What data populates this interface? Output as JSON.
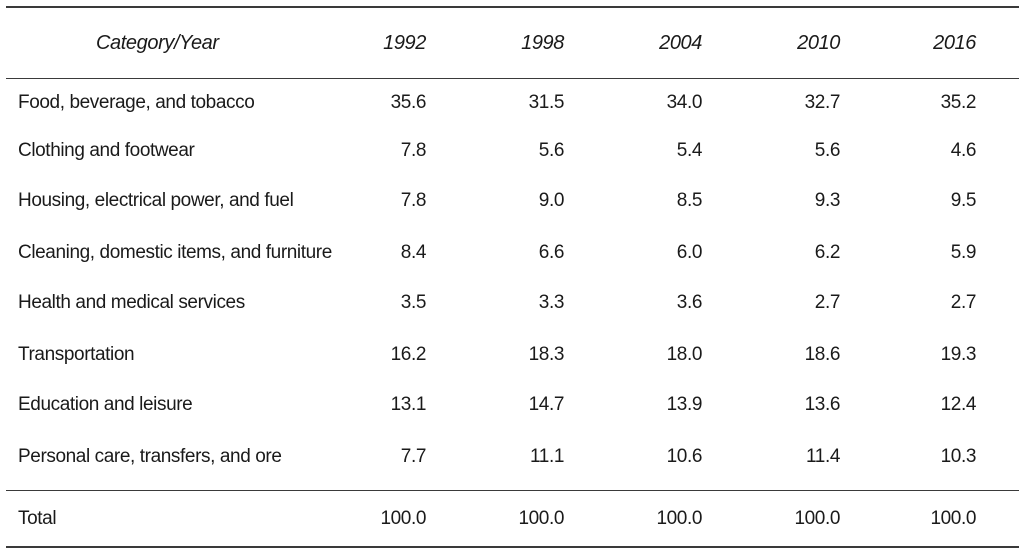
{
  "chart_data": {
    "type": "table",
    "columns": [
      "Category/Year",
      "1992",
      "1998",
      "2004",
      "2010",
      "2016"
    ],
    "rows": [
      {
        "label": "Food, beverage, and tobacco",
        "values": [
          "35.6",
          "31.5",
          "34.0",
          "32.7",
          "35.2"
        ]
      },
      {
        "label": "Clothing and footwear",
        "values": [
          "7.8",
          "5.6",
          "5.4",
          "5.6",
          "4.6"
        ]
      },
      {
        "label": "Housing, electrical power, and fuel",
        "values": [
          "7.8",
          "9.0",
          "8.5",
          "9.3",
          "9.5"
        ]
      },
      {
        "label": "Cleaning, domestic items, and furniture",
        "values": [
          "8.4",
          "6.6",
          "6.0",
          "6.2",
          "5.9"
        ]
      },
      {
        "label": "Health and medical services",
        "values": [
          "3.5",
          "3.3",
          "3.6",
          "2.7",
          "2.7"
        ]
      },
      {
        "label": "Transportation",
        "values": [
          "16.2",
          "18.3",
          "18.0",
          "18.6",
          "19.3"
        ]
      },
      {
        "label": "Education and leisure",
        "values": [
          "13.1",
          "14.7",
          "13.9",
          "13.6",
          "12.4"
        ]
      },
      {
        "label": "Personal care, transfers, and ore",
        "values": [
          "7.7",
          "11.1",
          "10.6",
          "11.4",
          "10.3"
        ]
      }
    ],
    "total": {
      "label": "Total",
      "values": [
        "100.0",
        "100.0",
        "100.0",
        "100.0",
        "100.0"
      ]
    }
  }
}
